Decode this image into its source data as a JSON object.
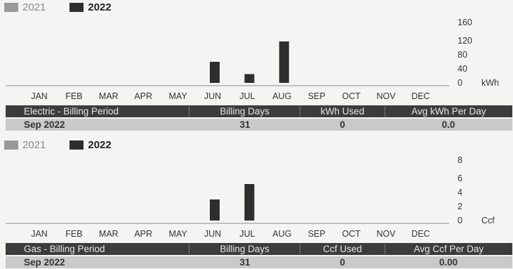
{
  "colors": {
    "y2021": "#9a9a9a",
    "y2022": "#2e2e2e"
  },
  "chart_data": [
    {
      "type": "bar",
      "legend": [
        "2021",
        "2022"
      ],
      "categories": [
        "JAN",
        "FEB",
        "MAR",
        "APR",
        "MAY",
        "JUN",
        "JUL",
        "AUG",
        "SEP",
        "OCT",
        "NOV",
        "DEC"
      ],
      "series": [
        {
          "name": "2021",
          "values": [
            0,
            0,
            0,
            0,
            0,
            0,
            0,
            0,
            0,
            0,
            0,
            0
          ]
        },
        {
          "name": "2022",
          "values": [
            0,
            0,
            0,
            0,
            0,
            60,
            25,
            118,
            0,
            0,
            0,
            0
          ]
        }
      ],
      "yticks": [
        "0",
        "40",
        "80",
        "120",
        "160"
      ],
      "unit": "kWh",
      "ylim": [
        0,
        160
      ],
      "table": {
        "headers": [
          "Electric - Billing Period",
          "Billing Days",
          "kWh Used",
          "Avg kWh Per Day"
        ],
        "row": [
          "Sep 2022",
          "31",
          "0",
          "0.0"
        ]
      }
    },
    {
      "type": "bar",
      "legend": [
        "2021",
        "2022"
      ],
      "categories": [
        "JAN",
        "FEB",
        "MAR",
        "APR",
        "MAY",
        "JUN",
        "JUL",
        "AUG",
        "SEP",
        "OCT",
        "NOV",
        "DEC"
      ],
      "series": [
        {
          "name": "2021",
          "values": [
            0,
            0,
            0,
            0,
            0,
            0,
            0,
            0,
            0,
            0,
            0,
            0
          ]
        },
        {
          "name": "2022",
          "values": [
            0,
            0,
            0,
            0,
            0,
            3,
            5.2,
            0,
            0,
            0,
            0,
            0
          ]
        }
      ],
      "yticks": [
        "0",
        "2",
        "4",
        "6",
        "8"
      ],
      "unit": "Ccf",
      "ylim": [
        0,
        8
      ],
      "table": {
        "headers": [
          "Gas - Billing Period",
          "Billing Days",
          "Ccf Used",
          "Avg Ccf Per Day"
        ],
        "row": [
          "Sep 2022",
          "31",
          "0",
          "0.00"
        ]
      }
    }
  ]
}
